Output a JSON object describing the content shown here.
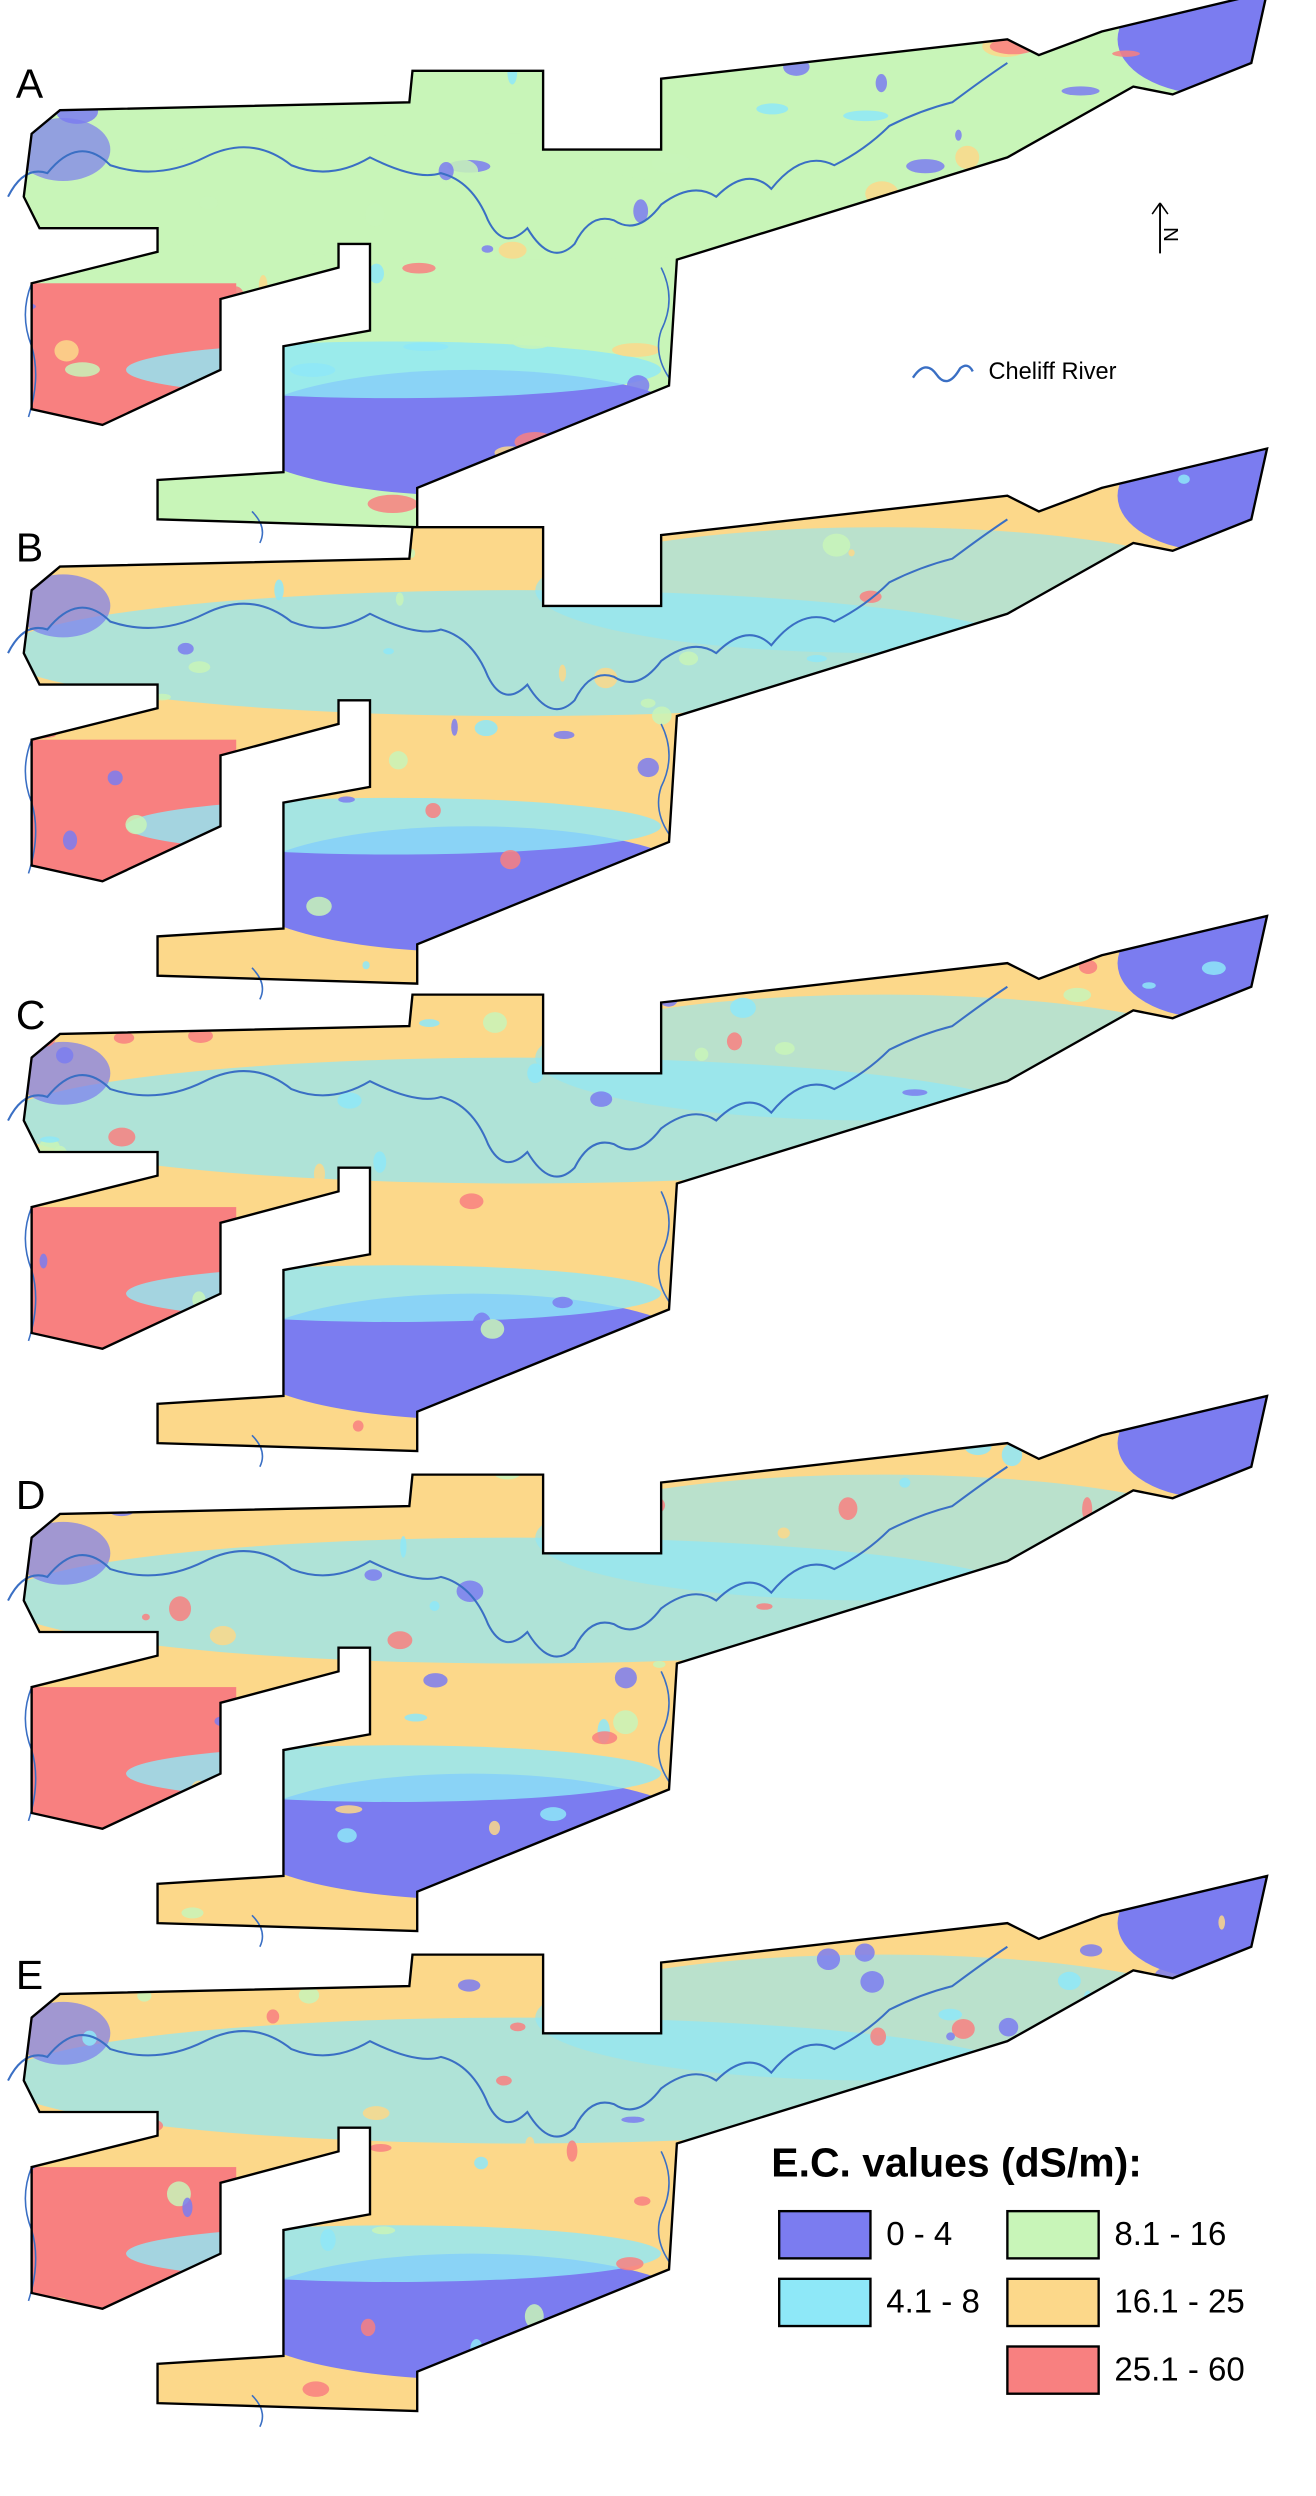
{
  "panels": [
    {
      "label": "A"
    },
    {
      "label": "B"
    },
    {
      "label": "C"
    },
    {
      "label": "D"
    },
    {
      "label": "E"
    }
  ],
  "river_label": "Cheliff River",
  "north_label": "N",
  "legend": {
    "title": "E.C. values (dS/m):",
    "items": [
      {
        "label": "0 - 4",
        "color": "#7b7cf0"
      },
      {
        "label": "4.1 - 8",
        "color": "#8ee8f8"
      },
      {
        "label": "8.1 - 16",
        "color": "#c8f5b8"
      },
      {
        "label": "16.1 - 25",
        "color": "#fcd88a"
      },
      {
        "label": "25.1 - 60",
        "color": "#f88080"
      }
    ]
  }
}
